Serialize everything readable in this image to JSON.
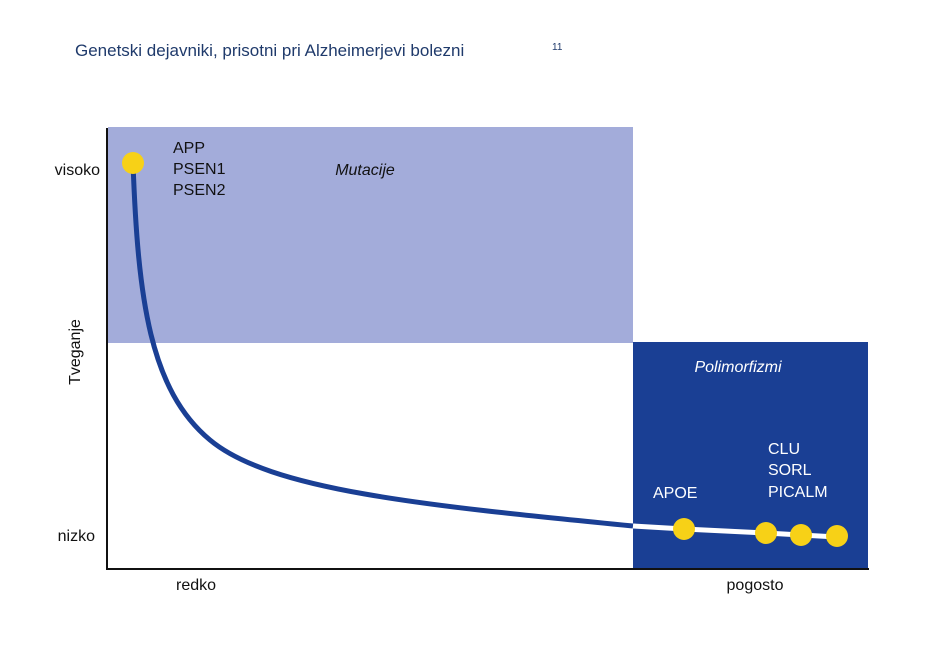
{
  "title": "Genetski dejavniki, prisotni pri Alzheimerjevi bolezni",
  "title_ref": "11",
  "y_axis": {
    "label": "Tveganje",
    "high": "visoko",
    "low": "nizko"
  },
  "x_axis": {
    "low": "redko",
    "high": "pogosto"
  },
  "regions": {
    "mutations": {
      "label": "Mutacije",
      "genes": [
        "APP",
        "PSEN1",
        "PSEN2"
      ]
    },
    "polymorphisms": {
      "label": "Polimorfizmi",
      "genes_left": [
        "APOE"
      ],
      "genes_right": [
        "CLU",
        "SORL",
        "PICALM"
      ]
    }
  }
}
